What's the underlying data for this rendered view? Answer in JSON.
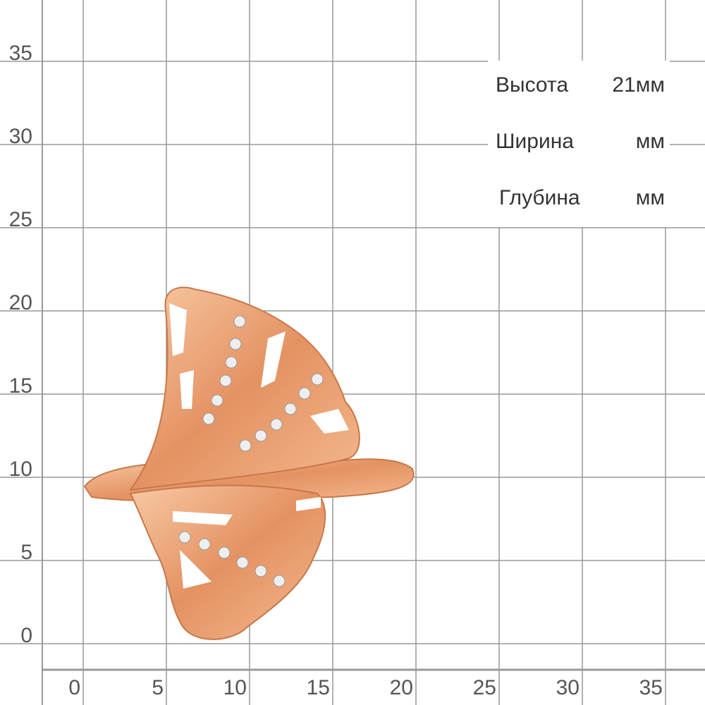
{
  "grid": {
    "x_labels": [
      0,
      5,
      10,
      15,
      20,
      25,
      30,
      35
    ],
    "y_labels": [
      0,
      5,
      10,
      15,
      20,
      25,
      30,
      35
    ]
  },
  "specs": [
    {
      "label": "Высота",
      "value": "21мм"
    },
    {
      "label": "Ширина",
      "value": "мм"
    },
    {
      "label": "Глубина",
      "value": "мм"
    }
  ]
}
